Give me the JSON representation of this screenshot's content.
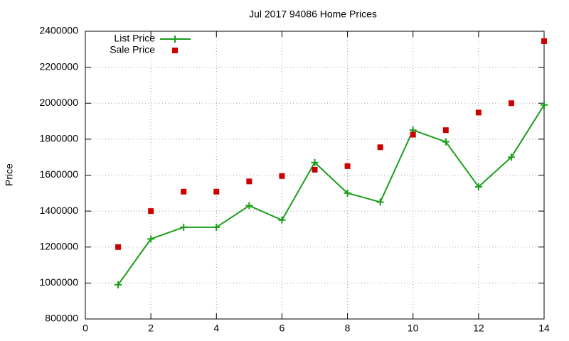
{
  "chart_data": {
    "type": "line",
    "title": "Jul 2017 94086 Home Prices",
    "y_label": "Price",
    "x": [
      1,
      2,
      3,
      4,
      5,
      6,
      7,
      8,
      9,
      10,
      11,
      12,
      13,
      14
    ],
    "series": [
      {
        "name": "List Price",
        "color": "#1a9e1a",
        "style": "linespoints",
        "marker": "plus",
        "values": [
          990000,
          1245000,
          1310000,
          1310000,
          1430000,
          1350000,
          1670000,
          1500000,
          1450000,
          1850000,
          1785000,
          1535000,
          1700000,
          1990000
        ]
      },
      {
        "name": "Sale Price",
        "color": "#cc0000",
        "style": "points",
        "marker": "square",
        "values": [
          1200000,
          1400000,
          1508000,
          1508000,
          1565000,
          1595000,
          1630000,
          1650000,
          1755000,
          1825000,
          1850000,
          1948000,
          2000000,
          2345000
        ]
      }
    ],
    "xlim": [
      0,
      14
    ],
    "xticks": [
      0,
      2,
      4,
      6,
      8,
      10,
      12,
      14
    ],
    "ylim": [
      800000,
      2400000
    ],
    "yticks": [
      800000,
      1000000,
      1200000,
      1400000,
      1600000,
      1800000,
      2000000,
      2200000,
      2400000
    ],
    "grid": true,
    "legend": "top-left"
  }
}
